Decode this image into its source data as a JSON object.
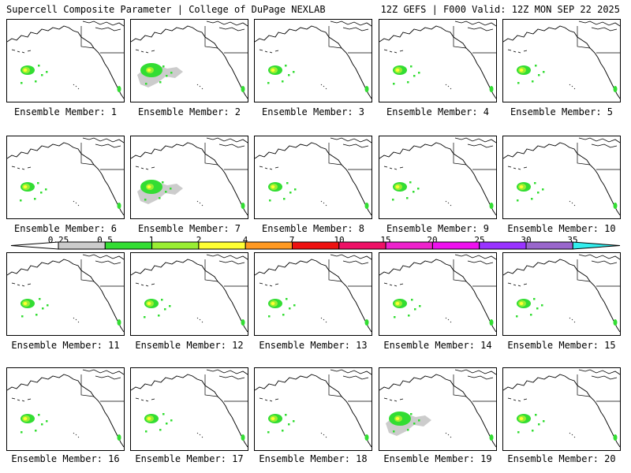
{
  "header": {
    "title": "Supercell Composite Parameter | College of DuPage NEXLAB",
    "run_info": "12Z GEFS | F000 Valid: 12Z MON SEP 22 2025"
  },
  "members": [
    {
      "label": "Ensemble Member: 1"
    },
    {
      "label": "Ensemble Member: 2"
    },
    {
      "label": "Ensemble Member: 3"
    },
    {
      "label": "Ensemble Member: 4"
    },
    {
      "label": "Ensemble Member: 5"
    },
    {
      "label": "Ensemble Member: 6"
    },
    {
      "label": "Ensemble Member: 7"
    },
    {
      "label": "Ensemble Member: 8"
    },
    {
      "label": "Ensemble Member: 9"
    },
    {
      "label": "Ensemble Member: 10"
    },
    {
      "label": "Ensemble Member: 11"
    },
    {
      "label": "Ensemble Member: 12"
    },
    {
      "label": "Ensemble Member: 13"
    },
    {
      "label": "Ensemble Member: 14"
    },
    {
      "label": "Ensemble Member: 15"
    },
    {
      "label": "Ensemble Member: 16"
    },
    {
      "label": "Ensemble Member: 17"
    },
    {
      "label": "Ensemble Member: 18"
    },
    {
      "label": "Ensemble Member: 19"
    },
    {
      "label": "Ensemble Member: 20"
    }
  ],
  "colorbar": {
    "labels": [
      "0.25",
      "0.5",
      "1",
      "2",
      "4",
      "7",
      "10",
      "15",
      "20",
      "25",
      "30",
      "35"
    ],
    "colors": [
      "#cccccc",
      "#33dd33",
      "#99ee33",
      "#ffff33",
      "#ff9922",
      "#ee1111",
      "#ee1166",
      "#ee22cc",
      "#ee11ee",
      "#9933ff",
      "#9966cc",
      "#33eeee"
    ]
  }
}
